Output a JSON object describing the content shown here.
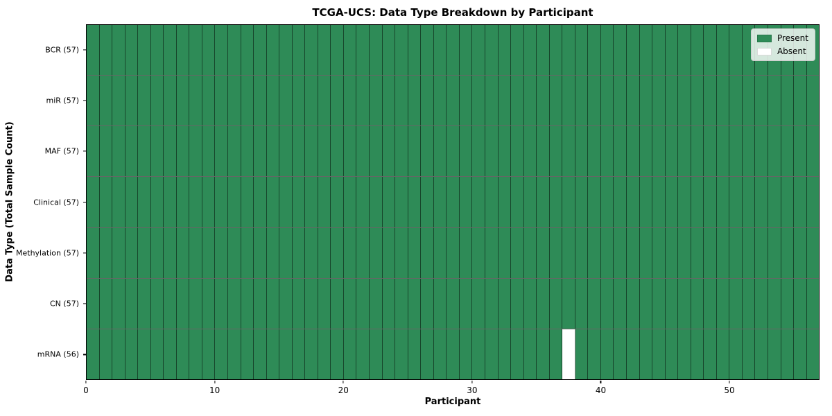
{
  "chart_data": {
    "type": "heatmap",
    "title": "TCGA-UCS: Data Type Breakdown by Participant",
    "xlabel": "Participant",
    "ylabel": "Data Type (Total Sample Count)",
    "n_participants": 57,
    "x_ticks": [
      0,
      10,
      20,
      30,
      40,
      50
    ],
    "rows": [
      {
        "label": "BCR (57)",
        "data_type": "BCR",
        "total_samples": 57,
        "absent_participants": []
      },
      {
        "label": "miR (57)",
        "data_type": "miR",
        "total_samples": 57,
        "absent_participants": []
      },
      {
        "label": "MAF (57)",
        "data_type": "MAF",
        "total_samples": 57,
        "absent_participants": []
      },
      {
        "label": "Clinical (57)",
        "data_type": "Clinical",
        "total_samples": 57,
        "absent_participants": []
      },
      {
        "label": "Methylation (57)",
        "data_type": "Methylation",
        "total_samples": 57,
        "absent_participants": []
      },
      {
        "label": "CN (57)",
        "data_type": "CN",
        "total_samples": 57,
        "absent_participants": []
      },
      {
        "label": "mRNA (56)",
        "data_type": "mRNA",
        "total_samples": 56,
        "absent_participants": [
          37
        ]
      }
    ],
    "legend": [
      {
        "label": "Present",
        "color": "#2E8B57"
      },
      {
        "label": "Absent",
        "color": "#FFFFFF"
      }
    ],
    "colors": {
      "present": "#2E8B57",
      "absent": "#FFFFFF",
      "grid_line": "rgba(0,0,0,0.55)",
      "spine": "#000000"
    },
    "legend_position": "upper right",
    "grid": true
  }
}
